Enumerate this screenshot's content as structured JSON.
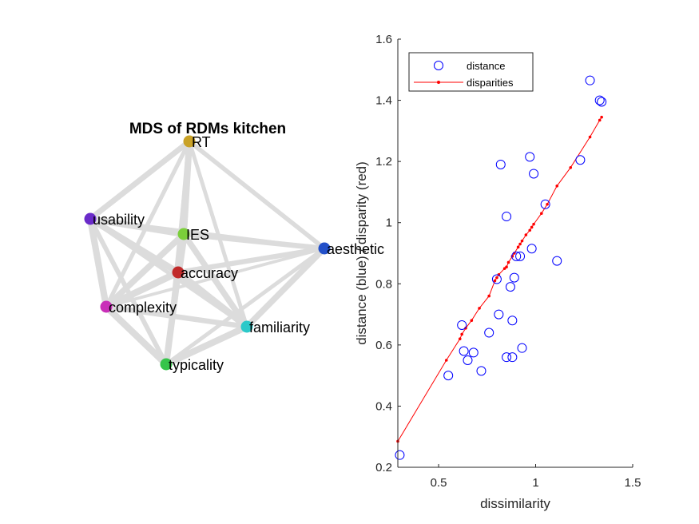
{
  "chart_data": [
    {
      "type": "network",
      "title": "MDS of RDMs kitchen",
      "nodes": [
        {
          "label": "RT",
          "color": "#c9a227",
          "pos": [
            237,
            177
          ]
        },
        {
          "label": "usability",
          "color": "#6a2bc9",
          "pos": [
            113,
            274
          ]
        },
        {
          "label": "IES",
          "color": "#7bcf3a",
          "pos": [
            230,
            293
          ]
        },
        {
          "label": "aesthetic",
          "color": "#2350c9",
          "pos": [
            406,
            311
          ]
        },
        {
          "label": "accuracy",
          "color": "#c12a2a",
          "pos": [
            223,
            341
          ]
        },
        {
          "label": "complexity",
          "color": "#c92fb8",
          "pos": [
            133,
            384
          ]
        },
        {
          "label": "familiarity",
          "color": "#2cc9c9",
          "pos": [
            309,
            409
          ]
        },
        {
          "label": "typicality",
          "color": "#36c44a",
          "pos": [
            208,
            456
          ]
        }
      ],
      "edge_color": "#dcdcdc"
    },
    {
      "type": "scatter",
      "xlabel": "dissimilarity",
      "ylabel": "distance (blue) / disparity (red)",
      "xlim": [
        0.29,
        1.5
      ],
      "ylim": [
        0.2,
        1.6
      ],
      "xticks": [
        "0.5",
        "1",
        "1.5"
      ],
      "yticks": [
        "0.2",
        "0.4",
        "0.6",
        "0.8",
        "1",
        "1.2",
        "1.4",
        "1.6"
      ],
      "legend": {
        "location": "top-left",
        "entries": [
          "distance",
          "disparities"
        ]
      },
      "series": [
        {
          "name": "distance",
          "marker": "circle",
          "color": "#0000ff",
          "x": [
            0.3,
            0.55,
            0.62,
            0.63,
            0.65,
            0.68,
            0.72,
            0.76,
            0.8,
            0.81,
            0.82,
            0.85,
            0.85,
            0.87,
            0.88,
            0.88,
            0.89,
            0.9,
            0.92,
            0.93,
            0.97,
            0.98,
            0.99,
            1.05,
            1.11,
            1.23,
            1.28,
            1.33,
            1.34
          ],
          "y": [
            0.24,
            0.5,
            0.665,
            0.58,
            0.55,
            0.575,
            0.515,
            0.64,
            0.815,
            0.7,
            1.19,
            0.56,
            1.02,
            0.79,
            0.56,
            0.68,
            0.82,
            0.89,
            0.89,
            0.59,
            1.215,
            0.915,
            1.16,
            1.06,
            0.875,
            1.205,
            1.465,
            1.4,
            1.395
          ]
        },
        {
          "name": "disparities",
          "marker": "dot-line",
          "color": "#ff0000",
          "x": [
            0.29,
            0.54,
            0.61,
            0.62,
            0.64,
            0.67,
            0.71,
            0.76,
            0.79,
            0.8,
            0.81,
            0.84,
            0.85,
            0.86,
            0.88,
            0.89,
            0.91,
            0.92,
            0.93,
            0.95,
            0.97,
            0.98,
            0.99,
            1.03,
            1.06,
            1.11,
            1.18,
            1.28,
            1.33,
            1.34
          ],
          "y": [
            0.285,
            0.55,
            0.62,
            0.635,
            0.655,
            0.68,
            0.72,
            0.76,
            0.81,
            0.82,
            0.83,
            0.85,
            0.855,
            0.87,
            0.89,
            0.9,
            0.92,
            0.93,
            0.94,
            0.96,
            0.975,
            0.985,
            0.995,
            1.03,
            1.06,
            1.12,
            1.18,
            1.28,
            1.335,
            1.345
          ]
        }
      ]
    }
  ]
}
